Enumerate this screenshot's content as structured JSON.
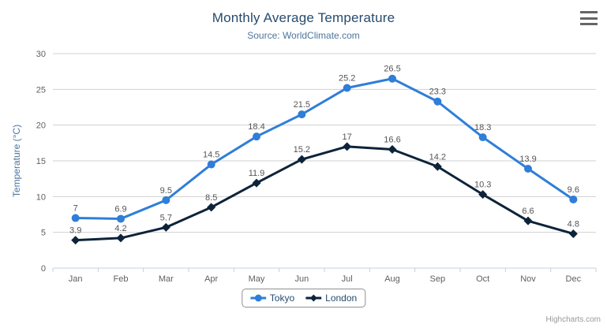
{
  "chart": {
    "title": "Monthly Average Temperature",
    "subtitle": "Source: WorldClimate.com",
    "credits": "Highcharts.com",
    "export_menu_icon": "hamburger"
  },
  "chart_data": {
    "type": "line",
    "title": "Monthly Average Temperature",
    "subtitle": "Source: WorldClimate.com",
    "categories": [
      "Jan",
      "Feb",
      "Mar",
      "Apr",
      "May",
      "Jun",
      "Jul",
      "Aug",
      "Sep",
      "Oct",
      "Nov",
      "Dec"
    ],
    "series": [
      {
        "name": "Tokyo",
        "color": "#2f7ed8",
        "marker": "circle",
        "values": [
          7,
          6.9,
          9.5,
          14.5,
          18.4,
          21.5,
          25.2,
          26.5,
          23.3,
          18.3,
          13.9,
          9.6
        ]
      },
      {
        "name": "London",
        "color": "#0d233a",
        "marker": "diamond",
        "values": [
          3.9,
          4.2,
          5.7,
          8.5,
          11.9,
          15.2,
          17,
          16.6,
          14.2,
          10.3,
          6.6,
          4.8
        ]
      }
    ],
    "xlabel": "",
    "ylabel": "Temperature (°C)",
    "ylim": [
      0,
      30
    ],
    "yticks": [
      0,
      5,
      10,
      15,
      20,
      25,
      30
    ],
    "grid": true,
    "data_labels": true,
    "legend_position": "bottom",
    "colors": {
      "grid_line": "#d0d0d0",
      "axis_line": "#c0d0e0",
      "tick_mark": "#c0d0e0",
      "axis_label": "#606060",
      "axis_title": "#4d759e",
      "data_label": "#555555",
      "title": "#274b6d",
      "subtitle": "#4d759e",
      "legend_text": "#274b6d",
      "legend_border": "#909090",
      "credits_text": "#999999"
    }
  }
}
